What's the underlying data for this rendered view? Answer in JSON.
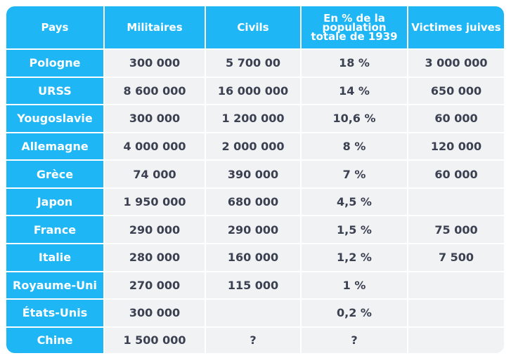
{
  "headers": [
    "Pays",
    "Militaires",
    "Civils",
    "En % de la population totale de 1939",
    "Victimes juives"
  ],
  "rows": [
    [
      "Pologne",
      "300 000",
      "5 700 00",
      "18 %",
      "3 000 000"
    ],
    [
      "URSS",
      "8 600 000",
      "16 000 000",
      "14 %",
      "650 000"
    ],
    [
      "Yougoslavie",
      "300 000",
      "1 200 000",
      "10,6 %",
      "60 000"
    ],
    [
      "Allemagne",
      "4 000 000",
      "2 000 000",
      "8 %",
      "120 000"
    ],
    [
      "Grèce",
      "74 000",
      "390 000",
      "7 %",
      "60 000"
    ],
    [
      "Japon",
      "1 950 000",
      "680 000",
      "4,5 %",
      ""
    ],
    [
      "France",
      "290 000",
      "290 000",
      "1,5 %",
      "75 000"
    ],
    [
      "Italie",
      "280 000",
      "160 000",
      "1,2 %",
      "7 500"
    ],
    [
      "Royaume-Uni",
      "270 000",
      "115 000",
      "1 %",
      ""
    ],
    [
      "États-Unis",
      "300 000",
      "",
      "0,2 %",
      ""
    ],
    [
      "Chine",
      "1 500 000",
      "?",
      "?",
      ""
    ]
  ],
  "colors": {
    "header_bg": "#1fb6f5",
    "cell_bg": "#f1f2f4",
    "text": "#3b4151"
  }
}
